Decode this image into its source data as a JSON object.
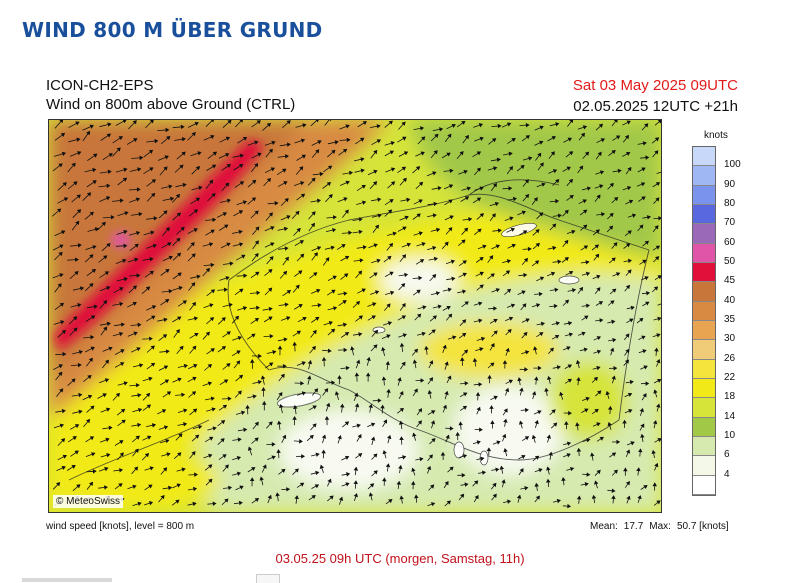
{
  "page": {
    "title": "WIND 800 M ÜBER GRUND"
  },
  "map_header": {
    "model": "ICON-CH2-EPS",
    "product": "Wind on 800m above Ground (CTRL)",
    "valid_time": "Sat 03 May 2025 09UTC",
    "run_time": "02.05.2025 12UTC +21h"
  },
  "map": {
    "copyright": "© MeteoSwiss"
  },
  "legend": {
    "unit": "knots",
    "levels": [
      {
        "label": "100",
        "color": "#c8d8f8"
      },
      {
        "label": "90",
        "color": "#9fb8f4"
      },
      {
        "label": "80",
        "color": "#7a94ee"
      },
      {
        "label": "70",
        "color": "#5a68e0"
      },
      {
        "label": "60",
        "color": "#9a6ab8"
      },
      {
        "label": "50",
        "color": "#e055a8"
      },
      {
        "label": "45",
        "color": "#e0103a"
      },
      {
        "label": "40",
        "color": "#c8763a"
      },
      {
        "label": "35",
        "color": "#d88a42"
      },
      {
        "label": "30",
        "color": "#e8a450"
      },
      {
        "label": "26",
        "color": "#f0cc78"
      },
      {
        "label": "22",
        "color": "#f4e43c"
      },
      {
        "label": "18",
        "color": "#f2ea18"
      },
      {
        "label": "14",
        "color": "#d6e43a"
      },
      {
        "label": "10",
        "color": "#a2c848"
      },
      {
        "label": "6",
        "color": "#d6eab0"
      },
      {
        "label": "4",
        "color": "#f4f8e8"
      },
      {
        "label": "",
        "color": "#ffffff"
      }
    ]
  },
  "footer": {
    "left": "wind speed [knots], level = 800 m",
    "mean_label": "Mean:",
    "mean_value": "17.7",
    "max_label": "Max:",
    "max_value": "50.7 [knots]"
  },
  "caption": "03.05.25 09h UTC (morgen, Samstag, 11h)"
}
